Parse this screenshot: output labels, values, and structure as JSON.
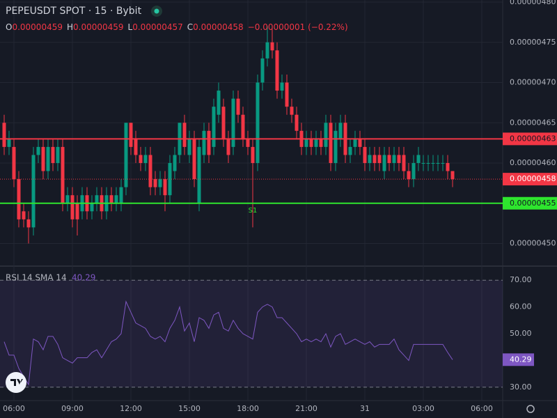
{
  "chart_data": [
    {
      "type": "candlestick",
      "title": "PEPEUSDT SPOT · 15 · Bybit",
      "ohlc_legend": {
        "open_label": "O",
        "open": "0.00000459",
        "high_label": "H",
        "high": "0.00000459",
        "low_label": "L",
        "low": "0.00000457",
        "close_label": "C",
        "close": "0.00000458",
        "change": "−0.00000001 (−0.22%)"
      },
      "categories": [
        null,
        null,
        "06:00",
        null,
        null,
        null,
        null,
        null,
        null,
        null,
        null,
        null,
        null,
        null,
        "09:00",
        null,
        null,
        null,
        null,
        null,
        null,
        null,
        null,
        null,
        null,
        null,
        "12:00",
        null,
        null,
        null,
        null,
        null,
        null,
        null,
        null,
        null,
        null,
        null,
        "15:00",
        null,
        null,
        null,
        null,
        null,
        null,
        null,
        null,
        null,
        null,
        null,
        "18:00",
        null,
        null,
        null,
        null,
        null,
        null,
        null,
        null,
        null,
        null,
        null,
        "21:00",
        null,
        null,
        null,
        null,
        null,
        null,
        null,
        null,
        null,
        null,
        null,
        "31",
        null,
        null,
        null,
        null,
        null,
        null,
        null,
        null,
        null,
        null,
        null,
        "03:00",
        null,
        null,
        null,
        null,
        null,
        null,
        null,
        null,
        null,
        null,
        null,
        "06:00"
      ],
      "open": [
        4.65e-06,
        4.62e-06,
        4.62e-06,
        4.58e-06,
        4.54e-06,
        4.53e-06,
        4.52e-06,
        4.61e-06,
        4.62e-06,
        4.59e-06,
        4.62e-06,
        4.6e-06,
        4.62e-06,
        4.55e-06,
        4.56e-06,
        4.55e-06,
        4.54e-06,
        4.56e-06,
        4.54e-06,
        4.55e-06,
        4.56e-06,
        4.54e-06,
        4.56e-06,
        4.55e-06,
        4.55e-06,
        4.57e-06,
        4.65e-06,
        4.63e-06,
        4.61e-06,
        4.6e-06,
        4.61e-06,
        4.58e-06,
        4.57e-06,
        4.58e-06,
        4.56e-06,
        4.59e-06,
        4.61e-06,
        4.65e-06,
        4.61e-06,
        4.63e-06,
        4.55e-06,
        4.61e-06,
        4.64e-06,
        4.62e-06,
        4.66e-06,
        4.67e-06,
        4.63e-06,
        4.62e-06,
        4.68e-06,
        4.66e-06,
        4.63e-06,
        4.62e-06,
        4.6e-06,
        4.7e-06,
        4.73e-06,
        4.75e-06,
        4.74e-06,
        4.69e-06,
        4.7e-06,
        4.67e-06,
        4.66e-06,
        4.64e-06,
        4.62e-06,
        4.63e-06,
        4.62e-06,
        4.63e-06,
        4.62e-06,
        4.65e-06,
        4.6e-06,
        4.63e-06,
        4.65e-06,
        4.61e-06,
        4.62e-06,
        4.63e-06,
        4.62e-06,
        4.6e-06,
        4.61e-06,
        4.61e-06,
        4.59e-06,
        4.61e-06,
        4.6e-06,
        4.61e-06,
        4.61e-06,
        4.59e-06,
        4.58e-06,
        4.6e-06,
        4.6e-06,
        4.6e-06,
        4.6e-06,
        4.6e-06,
        4.6e-06,
        4.6e-06,
        4.59e-06,
        null,
        null,
        null,
        null,
        null,
        null
      ],
      "high": [
        4.66e-06,
        4.64e-06,
        4.63e-06,
        4.59e-06,
        4.55e-06,
        4.54e-06,
        4.62e-06,
        4.63e-06,
        4.63e-06,
        4.63e-06,
        4.63e-06,
        4.63e-06,
        4.63e-06,
        4.57e-06,
        4.57e-06,
        4.56e-06,
        4.57e-06,
        4.57e-06,
        4.56e-06,
        4.57e-06,
        4.57e-06,
        4.57e-06,
        4.57e-06,
        4.57e-06,
        4.58e-06,
        4.65e-06,
        4.65e-06,
        4.64e-06,
        4.62e-06,
        4.62e-06,
        4.62e-06,
        4.59e-06,
        4.59e-06,
        4.59e-06,
        4.61e-06,
        4.62e-06,
        4.65e-06,
        4.66e-06,
        4.64e-06,
        4.64e-06,
        4.63e-06,
        4.65e-06,
        4.65e-06,
        4.68e-06,
        4.7e-06,
        4.68e-06,
        4.64e-06,
        4.69e-06,
        4.69e-06,
        4.67e-06,
        4.64e-06,
        4.63e-06,
        4.71e-06,
        4.74e-06,
        4.77e-06,
        4.77e-06,
        4.75e-06,
        4.71e-06,
        4.71e-06,
        4.68e-06,
        4.67e-06,
        4.65e-06,
        4.64e-06,
        4.64e-06,
        4.64e-06,
        4.64e-06,
        4.66e-06,
        4.66e-06,
        4.65e-06,
        4.66e-06,
        4.66e-06,
        4.63e-06,
        4.64e-06,
        4.64e-06,
        4.63e-06,
        4.62e-06,
        4.62e-06,
        4.62e-06,
        4.62e-06,
        4.62e-06,
        4.62e-06,
        4.62e-06,
        4.62e-06,
        4.6e-06,
        4.61e-06,
        4.62e-06,
        4.61e-06,
        4.61e-06,
        4.61e-06,
        4.61e-06,
        4.61e-06,
        4.61e-06,
        4.59e-06,
        null,
        null,
        null,
        null,
        null,
        null
      ],
      "low": [
        4.61e-06,
        4.61e-06,
        4.57e-06,
        4.52e-06,
        4.52e-06,
        4.5e-06,
        4.51e-06,
        4.6e-06,
        4.58e-06,
        4.58e-06,
        4.59e-06,
        4.59e-06,
        4.54e-06,
        4.54e-06,
        4.52e-06,
        4.51e-06,
        4.53e-06,
        4.53e-06,
        4.53e-06,
        4.54e-06,
        4.53e-06,
        4.53e-06,
        4.54e-06,
        4.54e-06,
        4.54e-06,
        4.56e-06,
        4.61e-06,
        4.6e-06,
        4.59e-06,
        4.59e-06,
        4.56e-06,
        4.56e-06,
        4.56e-06,
        4.54e-06,
        4.55e-06,
        4.58e-06,
        4.6e-06,
        4.61e-06,
        4.6e-06,
        4.57e-06,
        4.54e-06,
        4.6e-06,
        4.6e-06,
        4.61e-06,
        4.65e-06,
        4.62e-06,
        4.6e-06,
        4.61e-06,
        4.65e-06,
        4.62e-06,
        4.61e-06,
        4.52e-06,
        4.59e-06,
        4.69e-06,
        4.72e-06,
        4.73e-06,
        4.68e-06,
        4.68e-06,
        4.66e-06,
        4.65e-06,
        4.63e-06,
        4.61e-06,
        4.61e-06,
        4.61e-06,
        4.61e-06,
        4.61e-06,
        4.61e-06,
        4.59e-06,
        4.59e-06,
        4.62e-06,
        4.6e-06,
        4.6e-06,
        4.61e-06,
        4.61e-06,
        4.59e-06,
        4.59e-06,
        4.59e-06,
        4.59e-06,
        4.58e-06,
        4.59e-06,
        4.59e-06,
        4.59e-06,
        4.58e-06,
        4.57e-06,
        4.57e-06,
        4.59e-06,
        4.59e-06,
        4.59e-06,
        4.59e-06,
        4.59e-06,
        4.59e-06,
        4.58e-06,
        4.57e-06,
        null,
        null,
        null,
        null,
        null,
        null
      ],
      "close": [
        4.62e-06,
        4.63e-06,
        4.58e-06,
        4.53e-06,
        4.53e-06,
        4.52e-06,
        4.61e-06,
        4.62e-06,
        4.59e-06,
        4.62e-06,
        4.6e-06,
        4.62e-06,
        4.55e-06,
        4.56e-06,
        4.53e-06,
        4.53e-06,
        4.56e-06,
        4.54e-06,
        4.55e-06,
        4.56e-06,
        4.54e-06,
        4.56e-06,
        4.55e-06,
        4.56e-06,
        4.57e-06,
        4.65e-06,
        4.62e-06,
        4.61e-06,
        4.6e-06,
        4.61e-06,
        4.57e-06,
        4.57e-06,
        4.58e-06,
        4.56e-06,
        4.6e-06,
        4.61e-06,
        4.65e-06,
        4.62e-06,
        4.63e-06,
        4.58e-06,
        4.62e-06,
        4.64e-06,
        4.61e-06,
        4.67e-06,
        4.69e-06,
        4.63e-06,
        4.61e-06,
        4.68e-06,
        4.66e-06,
        4.63e-06,
        4.62e-06,
        4.6e-06,
        4.7e-06,
        4.73e-06,
        4.75e-06,
        4.74e-06,
        4.69e-06,
        4.7e-06,
        4.67e-06,
        4.66e-06,
        4.64e-06,
        4.62e-06,
        4.63e-06,
        4.62e-06,
        4.63e-06,
        4.62e-06,
        4.65e-06,
        4.6e-06,
        4.64e-06,
        4.65e-06,
        4.61e-06,
        4.62e-06,
        4.63e-06,
        4.62e-06,
        4.6e-06,
        4.61e-06,
        4.6e-06,
        4.6e-06,
        4.61e-06,
        4.6e-06,
        4.61e-06,
        4.6e-06,
        4.59e-06,
        4.58e-06,
        4.6e-06,
        4.61e-06,
        4.6e-06,
        4.6e-06,
        4.6e-06,
        4.6e-06,
        4.6e-06,
        4.59e-06,
        4.58e-06,
        null,
        null,
        null,
        null,
        null,
        null
      ],
      "up_color": "#089981",
      "down_color": "#f23645",
      "ylim": [
        4.4736e-06,
        4.8026e-06
      ],
      "yticks": [
        {
          "value": 4.8e-06,
          "label": "0.00000480"
        },
        {
          "value": 4.75e-06,
          "label": "0.00000475"
        },
        {
          "value": 4.7e-06,
          "label": "0.00000470"
        },
        {
          "value": 4.65e-06,
          "label": "0.00000465"
        },
        {
          "value": 4.6e-06,
          "label": "0.00000460"
        },
        {
          "value": 4.5e-06,
          "label": "0.00000450"
        }
      ],
      "levels": [
        {
          "value": 4.63e-06,
          "label": "0.00000463",
          "color": "#f23645"
        },
        {
          "value": 4.55e-06,
          "label": "0.00000455",
          "color": "#2ee52e"
        }
      ],
      "last_price": {
        "value": 4.58e-06,
        "label": "0.00000458",
        "color": "#f23645"
      },
      "annotation": "S1",
      "grid": true
    },
    {
      "type": "line",
      "title": "RSI 14 SMA 14",
      "color": "#7e57c2",
      "values": [
        47,
        42,
        42,
        37,
        34,
        31,
        48,
        47,
        44,
        49,
        49,
        46,
        41,
        40,
        39,
        41,
        41,
        41,
        43,
        44,
        41,
        44,
        47,
        48,
        50,
        62,
        58,
        54,
        53,
        52,
        49,
        48,
        49,
        47,
        52,
        55,
        60,
        51,
        54,
        47,
        56,
        55,
        52,
        57,
        58,
        52,
        51,
        55,
        52,
        50,
        49,
        48,
        58,
        60,
        61,
        60,
        56,
        56,
        54,
        52,
        50,
        47,
        48,
        47,
        48,
        47,
        50,
        45,
        49,
        50,
        46,
        47,
        48,
        47,
        46,
        47,
        45,
        46,
        46,
        46,
        48,
        44,
        42,
        40,
        46,
        46,
        46,
        46,
        46,
        46,
        46,
        43,
        40.29,
        null,
        null,
        null,
        null,
        null,
        null
      ],
      "ylim": [
        25,
        75
      ],
      "yticks": [
        {
          "value": 70,
          "label": "70.00"
        },
        {
          "value": 60,
          "label": "60.00"
        },
        {
          "value": 50,
          "label": "50.00"
        },
        {
          "value": 40,
          "label": "40.00"
        },
        {
          "value": 30,
          "label": "30.00"
        }
      ],
      "band": [
        30,
        70
      ]
    }
  ]
}
